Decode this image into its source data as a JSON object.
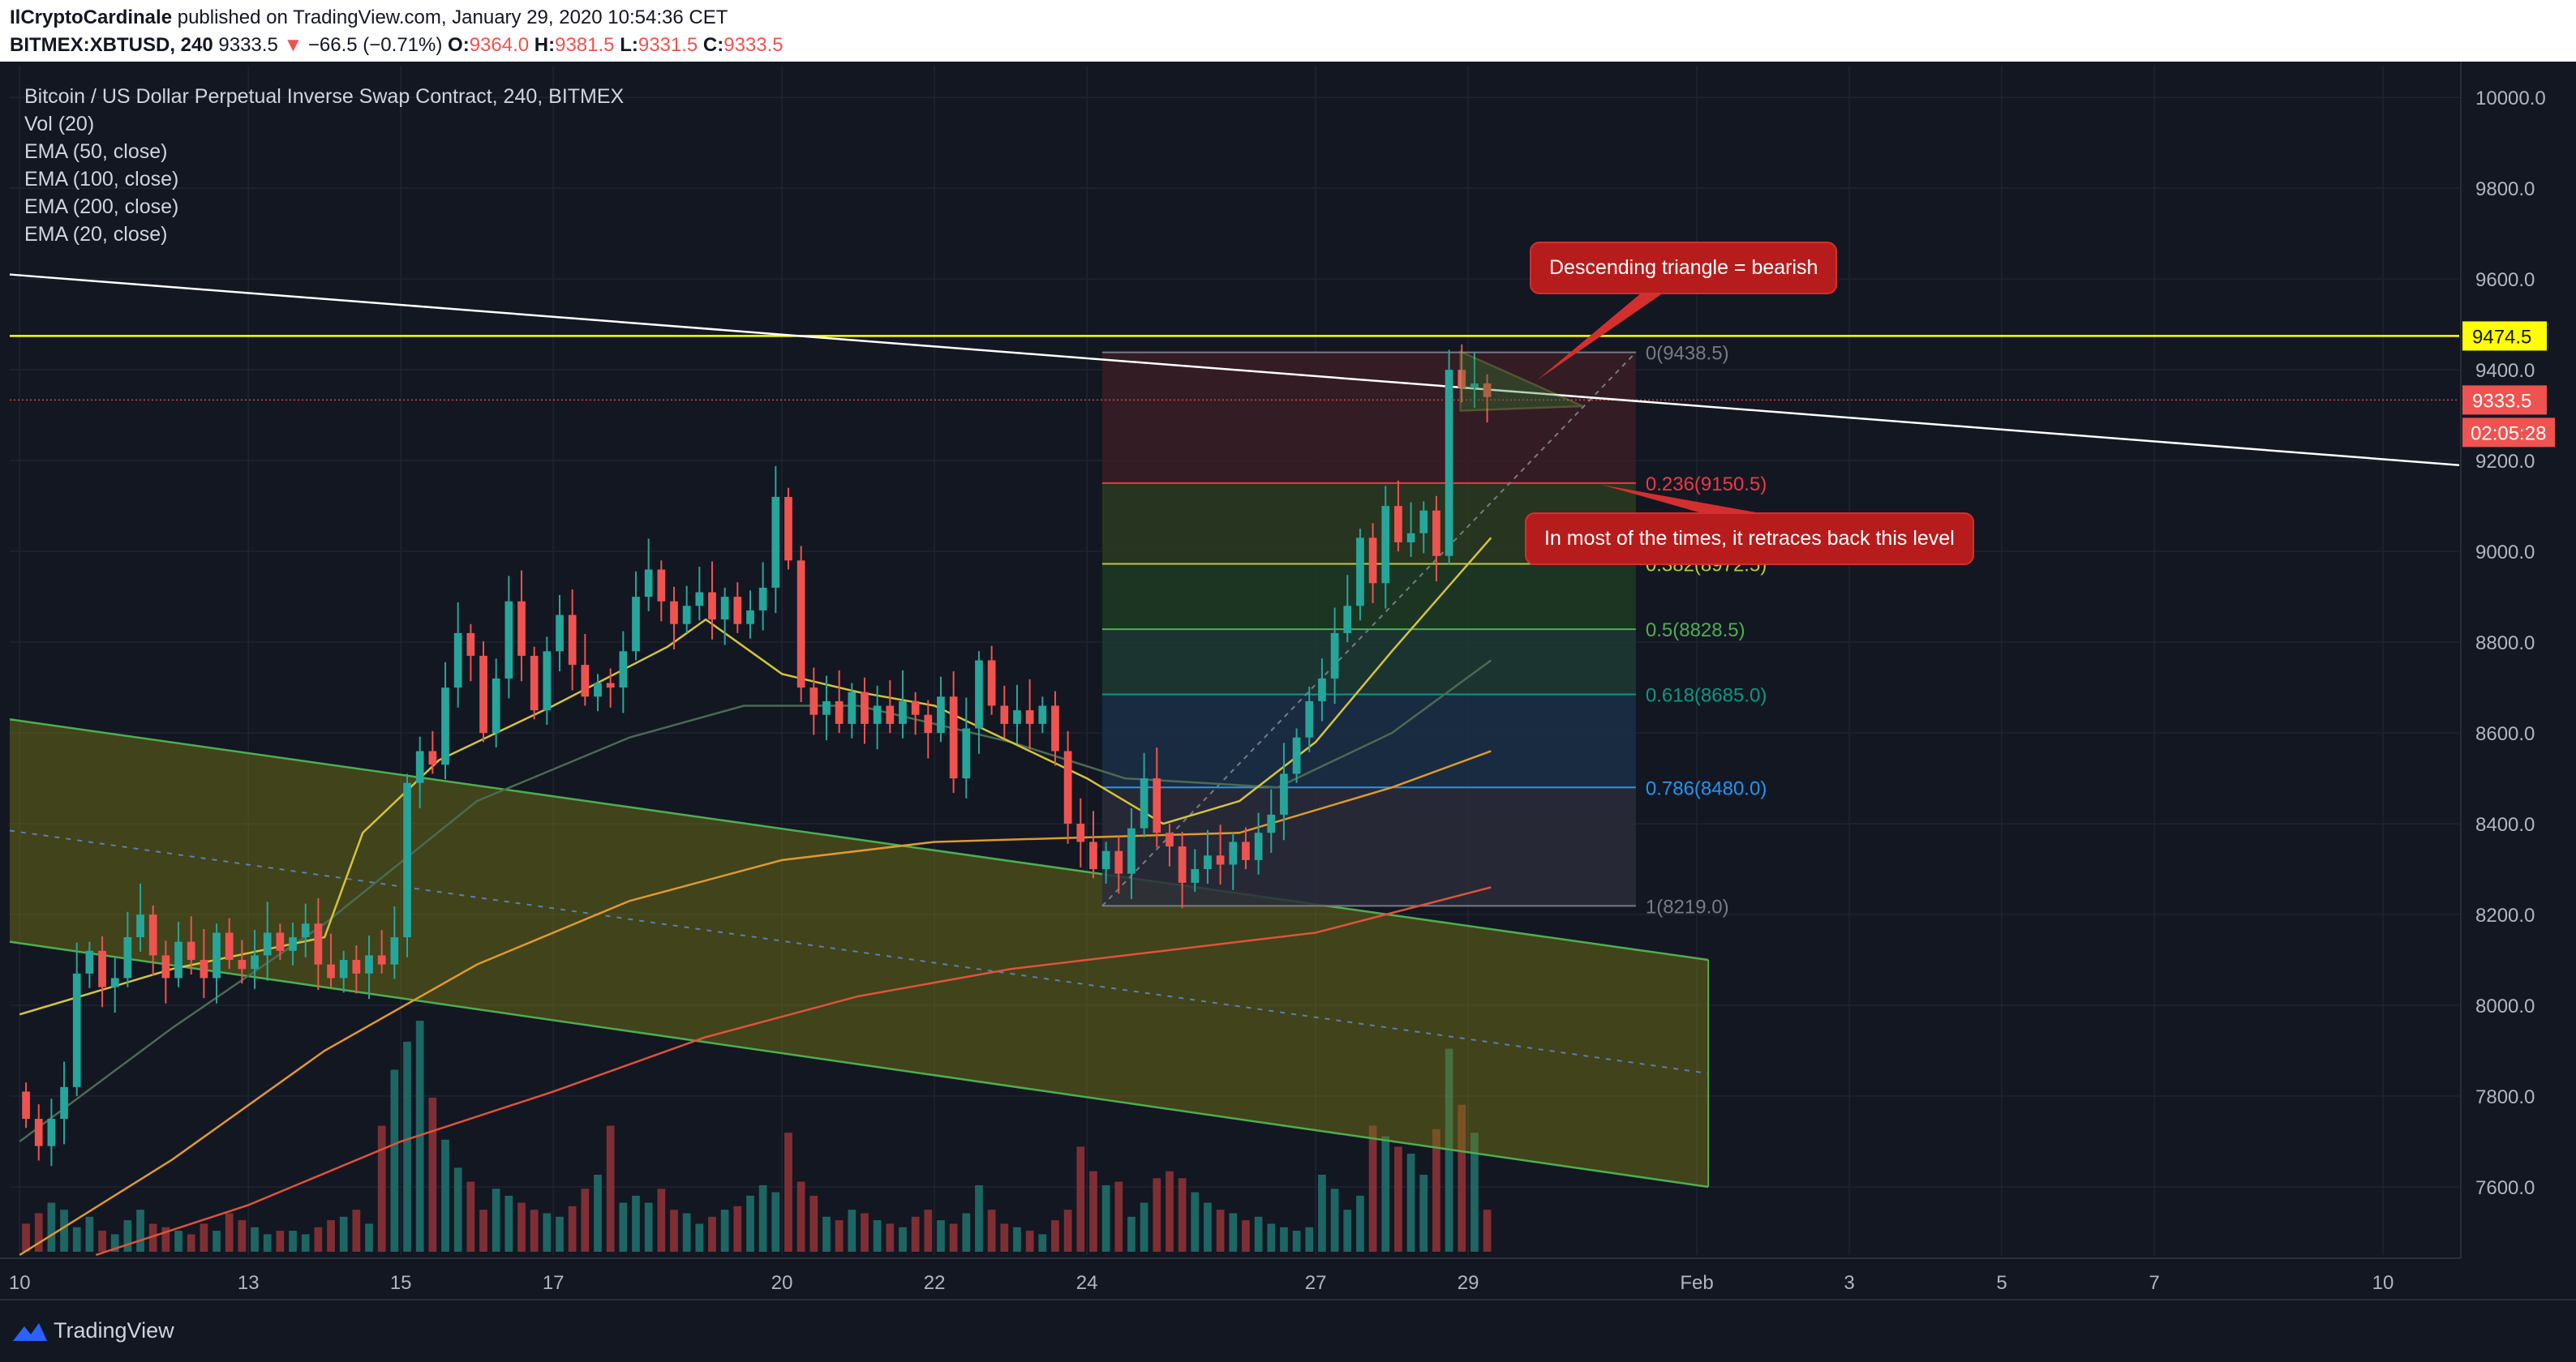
{
  "header": {
    "author": "IlCryptoCardinale",
    "published_text": "published on TradingView.com, January 29, 2020 10:54:36 CET",
    "symbol": "BITMEX:XBTUSD, 240",
    "last": "9333.5",
    "change_arrow": "▼",
    "change": "−66.5 (−0.71%)",
    "o_label": "O:",
    "o_value": "9364.0",
    "h_label": "H:",
    "h_value": "9381.5",
    "l_label": "L:",
    "l_value": "9331.5",
    "c_label": "C:",
    "c_value": "9333.5"
  },
  "legend": {
    "title": "Bitcoin / US Dollar Perpetual Inverse Swap Contract, 240, BITMEX",
    "items": [
      "Vol (20)",
      "EMA (50, close)",
      "EMA (100, close)",
      "EMA (200, close)",
      "EMA (20, close)"
    ]
  },
  "annotations": {
    "callout_top": "Descending triangle = bearish",
    "callout_mid": "In most of the times, it retraces back this level"
  },
  "price_labels": {
    "resistance": "9474.5",
    "current": "9333.5",
    "countdown": "02:05:28"
  },
  "footer": {
    "brand": "TradingView"
  },
  "colors": {
    "up": "#26a69a",
    "down": "#ef5350",
    "resistance": "#ffff00",
    "ema20": "#d4c43a",
    "ema50": "#4a6b53",
    "ema100": "#e09a2b",
    "ema200": "#e0533a",
    "channel": "#7a7a14",
    "trendline": "#ffffff"
  },
  "chart_data": {
    "type": "candlestick",
    "ylim": [
      7450,
      10070
    ],
    "y_ticks": [
      7600,
      7800,
      8000,
      8200,
      8400,
      8600,
      8800,
      9000,
      9200,
      9400,
      9600,
      9800,
      10000
    ],
    "x_ticks": [
      {
        "label": "10",
        "day": 10
      },
      {
        "label": "13",
        "day": 13
      },
      {
        "label": "15",
        "day": 15
      },
      {
        "label": "17",
        "day": 17
      },
      {
        "label": "20",
        "day": 20
      },
      {
        "label": "22",
        "day": 22
      },
      {
        "label": "24",
        "day": 24
      },
      {
        "label": "27",
        "day": 27
      },
      {
        "label": "29",
        "day": 29
      },
      {
        "label": "Feb",
        "day": 32
      },
      {
        "label": "3",
        "day": 34
      },
      {
        "label": "5",
        "day": 36
      },
      {
        "label": "7",
        "day": 38
      },
      {
        "label": "10",
        "day": 41
      }
    ],
    "xlim_days": [
      9.87,
      42.0
    ],
    "candles_4h": [
      [
        7810,
        7750
      ],
      [
        7750,
        7690
      ],
      [
        7690,
        7750
      ],
      [
        7750,
        7820
      ],
      [
        7820,
        8070
      ],
      [
        8070,
        8120
      ],
      [
        8120,
        8040
      ],
      [
        8040,
        8060
      ],
      [
        8060,
        8150
      ],
      [
        8150,
        8200
      ],
      [
        8200,
        8110
      ],
      [
        8110,
        8060
      ],
      [
        8060,
        8140
      ],
      [
        8140,
        8100
      ],
      [
        8100,
        8060
      ],
      [
        8060,
        8160
      ],
      [
        8160,
        8100
      ],
      [
        8100,
        8080
      ],
      [
        8080,
        8110
      ],
      [
        8110,
        8160
      ],
      [
        8160,
        8120
      ],
      [
        8120,
        8150
      ],
      [
        8150,
        8180
      ],
      [
        8180,
        8090
      ],
      [
        8090,
        8060
      ],
      [
        8060,
        8100
      ],
      [
        8100,
        8070
      ],
      [
        8070,
        8110
      ],
      [
        8110,
        8090
      ],
      [
        8090,
        8150
      ],
      [
        8150,
        8490
      ],
      [
        8490,
        8560
      ],
      [
        8560,
        8530
      ],
      [
        8530,
        8700
      ],
      [
        8700,
        8820
      ],
      [
        8820,
        8770
      ],
      [
        8770,
        8600
      ],
      [
        8600,
        8720
      ],
      [
        8720,
        8890
      ],
      [
        8890,
        8770
      ],
      [
        8770,
        8650
      ],
      [
        8650,
        8780
      ],
      [
        8780,
        8860
      ],
      [
        8860,
        8750
      ],
      [
        8750,
        8680
      ],
      [
        8680,
        8710
      ],
      [
        8710,
        8700
      ],
      [
        8700,
        8780
      ],
      [
        8780,
        8900
      ],
      [
        8900,
        8960
      ],
      [
        8960,
        8890
      ],
      [
        8890,
        8840
      ],
      [
        8840,
        8880
      ],
      [
        8880,
        8910
      ],
      [
        8910,
        8850
      ],
      [
        8850,
        8900
      ],
      [
        8900,
        8840
      ],
      [
        8840,
        8870
      ],
      [
        8870,
        8920
      ],
      [
        8920,
        9120
      ],
      [
        9120,
        8980
      ],
      [
        8980,
        8700
      ],
      [
        8700,
        8640
      ],
      [
        8640,
        8670
      ],
      [
        8670,
        8620
      ],
      [
        8620,
        8690
      ],
      [
        8690,
        8620
      ],
      [
        8620,
        8660
      ],
      [
        8660,
        8620
      ],
      [
        8620,
        8670
      ],
      [
        8670,
        8640
      ],
      [
        8640,
        8600
      ],
      [
        8600,
        8680
      ],
      [
        8680,
        8500
      ],
      [
        8500,
        8610
      ],
      [
        8610,
        8760
      ],
      [
        8760,
        8660
      ],
      [
        8660,
        8620
      ],
      [
        8620,
        8650
      ],
      [
        8650,
        8620
      ],
      [
        8620,
        8660
      ],
      [
        8660,
        8560
      ],
      [
        8560,
        8400
      ],
      [
        8400,
        8360
      ],
      [
        8360,
        8300
      ],
      [
        8300,
        8340
      ],
      [
        8340,
        8290
      ],
      [
        8290,
        8390
      ],
      [
        8390,
        8500
      ],
      [
        8500,
        8380
      ],
      [
        8380,
        8350
      ],
      [
        8350,
        8270
      ],
      [
        8270,
        8300
      ],
      [
        8300,
        8330
      ],
      [
        8330,
        8310
      ],
      [
        8310,
        8360
      ],
      [
        8360,
        8320
      ],
      [
        8320,
        8380
      ],
      [
        8380,
        8420
      ],
      [
        8420,
        8510
      ],
      [
        8510,
        8590
      ],
      [
        8590,
        8670
      ],
      [
        8670,
        8720
      ],
      [
        8720,
        8820
      ],
      [
        8820,
        8880
      ],
      [
        8880,
        9030
      ],
      [
        9030,
        8930
      ],
      [
        8930,
        9100
      ],
      [
        9100,
        9020
      ],
      [
        9020,
        9040
      ],
      [
        9040,
        9090
      ],
      [
        9090,
        8990
      ],
      [
        8990,
        9400
      ],
      [
        9400,
        9360
      ],
      [
        9360,
        9370
      ],
      [
        9370,
        9340
      ]
    ],
    "volume_4h": [
      40,
      55,
      70,
      60,
      35,
      50,
      30,
      25,
      45,
      60,
      40,
      35,
      30,
      25,
      40,
      30,
      55,
      45,
      35,
      25,
      30,
      30,
      25,
      35,
      45,
      50,
      60,
      40,
      180,
      260,
      300,
      330,
      220,
      160,
      120,
      100,
      60,
      90,
      80,
      70,
      60,
      55,
      50,
      65,
      90,
      110,
      180,
      70,
      80,
      70,
      90,
      60,
      55,
      40,
      50,
      60,
      65,
      80,
      95,
      85,
      170,
      100,
      80,
      50,
      45,
      60,
      55,
      45,
      40,
      35,
      50,
      60,
      45,
      40,
      55,
      95,
      60,
      40,
      35,
      30,
      25,
      45,
      60,
      150,
      115,
      95,
      100,
      50,
      70,
      105,
      115,
      105,
      85,
      70,
      60,
      55,
      45,
      50,
      40,
      35,
      30,
      35,
      110,
      90,
      60,
      80,
      180,
      165,
      150,
      140,
      110,
      175,
      290,
      210,
      170,
      60
    ],
    "ema20": [
      [
        10.0,
        7980
      ],
      [
        12.0,
        8080
      ],
      [
        14.0,
        8150
      ],
      [
        14.5,
        8380
      ],
      [
        15.5,
        8540
      ],
      [
        17.0,
        8660
      ],
      [
        18.5,
        8790
      ],
      [
        19.0,
        8850
      ],
      [
        20.0,
        8730
      ],
      [
        21.0,
        8690
      ],
      [
        22.0,
        8660
      ],
      [
        23.0,
        8580
      ],
      [
        24.0,
        8500
      ],
      [
        25.0,
        8400
      ],
      [
        26.0,
        8450
      ],
      [
        27.0,
        8580
      ],
      [
        28.0,
        8780
      ],
      [
        29.3,
        9030
      ]
    ],
    "ema50": [
      [
        10.0,
        7700
      ],
      [
        12.0,
        7950
      ],
      [
        14.0,
        8180
      ],
      [
        16.0,
        8450
      ],
      [
        18.0,
        8590
      ],
      [
        19.5,
        8660
      ],
      [
        21.0,
        8660
      ],
      [
        23.0,
        8580
      ],
      [
        24.5,
        8500
      ],
      [
        26.5,
        8480
      ],
      [
        28.0,
        8600
      ],
      [
        29.3,
        8760
      ]
    ],
    "ema100": [
      [
        10.0,
        7450
      ],
      [
        12.0,
        7660
      ],
      [
        14.0,
        7900
      ],
      [
        16.0,
        8090
      ],
      [
        18.0,
        8230
      ],
      [
        20.0,
        8320
      ],
      [
        22.0,
        8360
      ],
      [
        24.0,
        8370
      ],
      [
        26.0,
        8380
      ],
      [
        28.0,
        8480
      ],
      [
        29.3,
        8560
      ]
    ],
    "ema200": [
      [
        11.0,
        7450
      ],
      [
        13.0,
        7560
      ],
      [
        15.0,
        7700
      ],
      [
        17.0,
        7810
      ],
      [
        19.0,
        7930
      ],
      [
        21.0,
        8020
      ],
      [
        23.0,
        8080
      ],
      [
        25.0,
        8120
      ],
      [
        27.0,
        8160
      ],
      [
        29.3,
        8260
      ]
    ],
    "channel": {
      "upper": [
        [
          9.87,
          8630
        ],
        [
          32.15,
          8100
        ]
      ],
      "lower": [
        [
          9.87,
          8140
        ],
        [
          32.15,
          7600
        ]
      ],
      "mid": [
        [
          9.87,
          8385
        ],
        [
          32.15,
          7850
        ]
      ],
      "end_day": 32.15
    },
    "trendline": [
      [
        9.87,
        9610
      ],
      [
        42.0,
        9190
      ]
    ],
    "resistance": 9474.5,
    "current": 9333.5,
    "fib": {
      "start_day": 24.2,
      "end_day": 31.2,
      "low": 8219.0,
      "levels": [
        {
          "ratio": "0",
          "price": 9438.5,
          "color": "#787b86"
        },
        {
          "ratio": "0.236",
          "price": 9150.5,
          "color": "#f23645"
        },
        {
          "ratio": "0.382",
          "price": 8972.5,
          "color": "#c0ca33"
        },
        {
          "ratio": "0.5",
          "price": 8828.5,
          "color": "#4caf50"
        },
        {
          "ratio": "0.618",
          "price": 8685.0,
          "color": "#089981"
        },
        {
          "ratio": "0.786",
          "price": 8480.0,
          "color": "#2196f3"
        },
        {
          "ratio": "1",
          "price": 8219.0,
          "color": "#787b86"
        }
      ]
    },
    "triangle": [
      [
        28.9,
        9440
      ],
      [
        30.5,
        9320
      ],
      [
        28.9,
        9310
      ]
    ],
    "fib_diagonal": [
      [
        24.2,
        8219
      ],
      [
        31.2,
        9438.5
      ]
    ]
  }
}
